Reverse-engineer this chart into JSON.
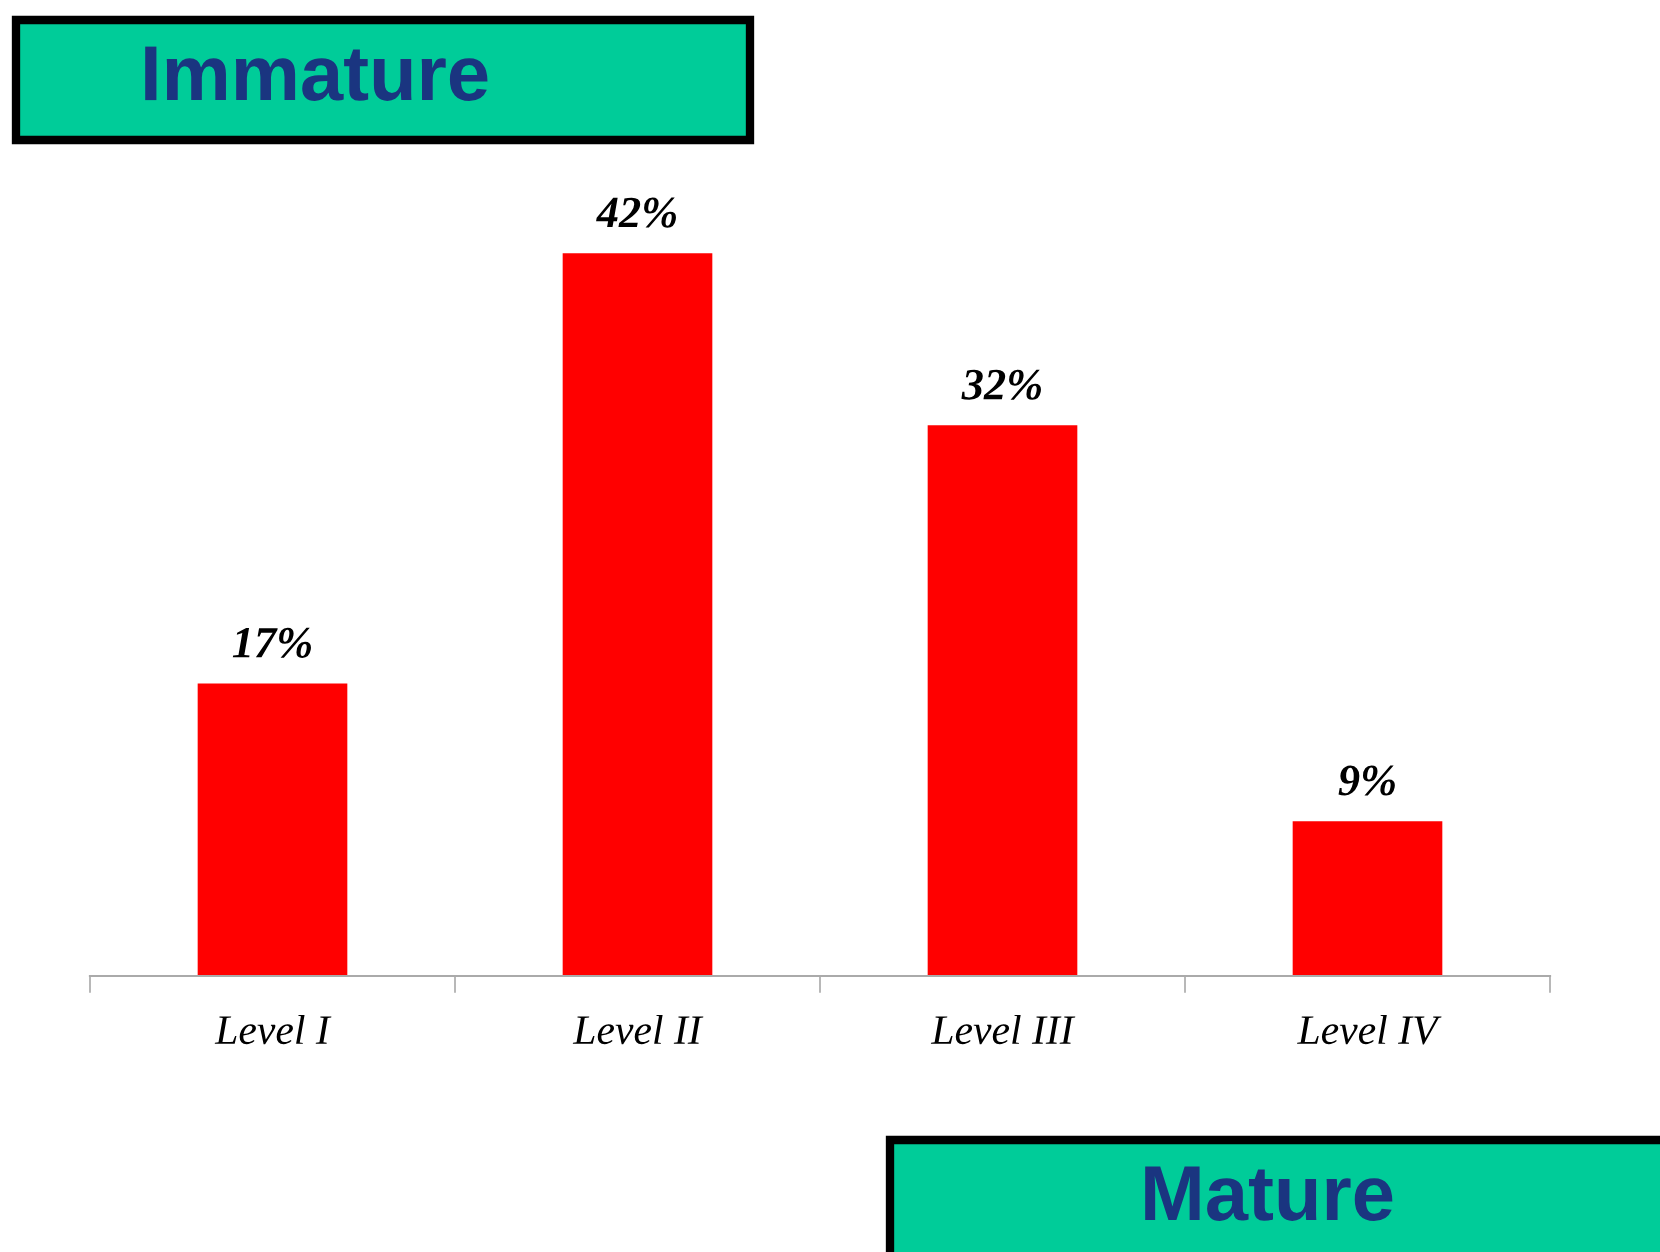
{
  "chart_data": {
    "type": "bar",
    "categories": [
      "Level I",
      "Level II",
      "Level III",
      "Level IV"
    ],
    "values": [
      17,
      42,
      32,
      9
    ],
    "color": "#ff0000",
    "value_labels": [
      "17%",
      "42%",
      "32%",
      "9%"
    ],
    "annotations": [
      "Immature",
      "Mature"
    ],
    "grid": false,
    "legend": false
  }
}
